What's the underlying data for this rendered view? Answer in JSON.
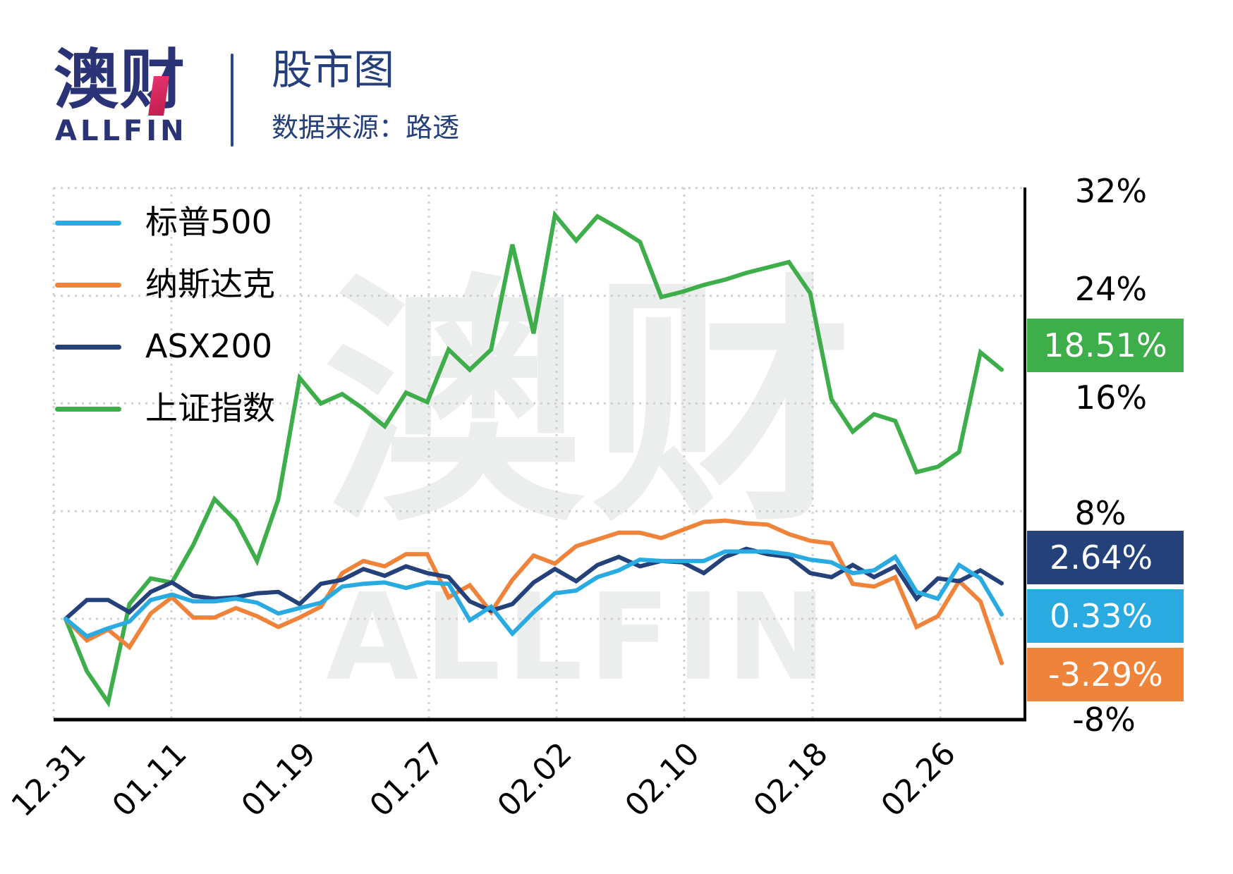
{
  "header": {
    "logo_cn": "澳财",
    "logo_en": "ALLFIN",
    "title": "股市图",
    "subtitle": "数据来源：路透"
  },
  "watermark": {
    "cn": "澳财",
    "en": "ALLFIN"
  },
  "colors": {
    "sp500": "#29abe2",
    "nasdaq": "#f0833a",
    "asx200": "#24417a",
    "shanghai": "#3dae49",
    "brand": "#2a3375",
    "grid": "#d0d0d8"
  },
  "legend": [
    {
      "key": "sp500",
      "label": "标普500"
    },
    {
      "key": "nasdaq",
      "label": "纳斯达克"
    },
    {
      "key": "asx200",
      "label": "ASX200"
    },
    {
      "key": "shanghai",
      "label": "上证指数"
    }
  ],
  "badges": [
    {
      "key": "shanghai",
      "label": "18.51%"
    },
    {
      "key": "asx200",
      "label": "2.64%"
    },
    {
      "key": "sp500",
      "label": "0.33%"
    },
    {
      "key": "nasdaq",
      "label": "-3.29%"
    }
  ],
  "chart_data": {
    "type": "line",
    "title": "股市图",
    "subtitle": "数据来源：路透",
    "xlabel": "",
    "ylabel": "",
    "ylim": [
      -8,
      32
    ],
    "yticks": [
      "32%",
      "24%",
      "16%",
      "8%",
      "-8%"
    ],
    "ytick_values": [
      32,
      24,
      16,
      8,
      -8
    ],
    "grid": true,
    "legend_position": "upper-left",
    "x_tick_labels": [
      {
        "index": 0,
        "label": "12.31"
      },
      {
        "index": 5,
        "label": "01.11"
      },
      {
        "index": 11,
        "label": "01.19"
      },
      {
        "index": 17,
        "label": "01.27"
      },
      {
        "index": 23,
        "label": "02.02"
      },
      {
        "index": 29,
        "label": "02.10"
      },
      {
        "index": 35,
        "label": "02.18"
      },
      {
        "index": 41,
        "label": "02.26"
      }
    ],
    "n_points": 45,
    "series": [
      {
        "key": "sp500",
        "name": "标普500",
        "final": "0.33%",
        "values": [
          0,
          -1.3,
          -0.7,
          -0.2,
          1.4,
          1.8,
          1.3,
          1.3,
          1.5,
          1.2,
          0.4,
          0.8,
          1.2,
          2.4,
          2.6,
          2.7,
          2.3,
          2.7,
          2.6,
          -0.1,
          0.9,
          -1.1,
          0.5,
          1.9,
          2.1,
          3.1,
          3.6,
          4.4,
          4.3,
          4.3,
          4.3,
          5.0,
          5.0,
          5.0,
          4.8,
          4.4,
          4.2,
          3.4,
          3.6,
          4.6,
          2.0,
          1.5,
          4.0,
          3.0,
          0.33
        ]
      },
      {
        "key": "nasdaq",
        "name": "纳斯达克",
        "final": "-3.29%",
        "values": [
          0,
          -1.6,
          -0.8,
          -2.1,
          0.4,
          1.6,
          0.1,
          0.1,
          0.8,
          0.2,
          -0.6,
          0.1,
          0.9,
          3.4,
          4.3,
          3.9,
          4.8,
          4.8,
          1.6,
          2.5,
          0.5,
          2.9,
          4.7,
          4.1,
          5.4,
          5.9,
          6.4,
          6.4,
          6.0,
          6.6,
          7.2,
          7.3,
          7.1,
          7.0,
          6.3,
          5.8,
          5.6,
          2.6,
          2.4,
          3.1,
          -0.6,
          0.2,
          2.8,
          1.3,
          -3.29
        ]
      },
      {
        "key": "asx200",
        "name": "ASX200",
        "final": "2.64%",
        "values": [
          0,
          1.4,
          1.4,
          0.5,
          2.0,
          2.7,
          1.7,
          1.5,
          1.6,
          1.9,
          2.0,
          1.1,
          2.6,
          2.9,
          3.7,
          3.2,
          3.9,
          3.4,
          3.1,
          1.3,
          0.6,
          1.1,
          2.7,
          3.7,
          2.8,
          4.0,
          4.6,
          3.9,
          4.3,
          4.2,
          3.4,
          4.6,
          5.2,
          4.8,
          4.6,
          3.4,
          3.1,
          4.0,
          3.1,
          3.9,
          1.5,
          3.0,
          2.8,
          3.6,
          2.64
        ]
      },
      {
        "key": "shanghai",
        "name": "上证指数",
        "final": "18.51%",
        "values": [
          0,
          -3.9,
          -6.2,
          1.1,
          3.0,
          2.7,
          5.5,
          8.9,
          7.3,
          4.3,
          8.9,
          17.9,
          16.0,
          16.7,
          15.6,
          14.3,
          16.8,
          16.1,
          20.0,
          18.5,
          20.0,
          27.8,
          21.2,
          30.0,
          28.1,
          29.9,
          29.0,
          28.0,
          23.9,
          24.3,
          24.8,
          25.2,
          25.7,
          26.1,
          26.5,
          24.2,
          16.3,
          13.9,
          15.2,
          14.7,
          10.9,
          11.3,
          12.4,
          19.8,
          18.51
        ]
      }
    ]
  }
}
